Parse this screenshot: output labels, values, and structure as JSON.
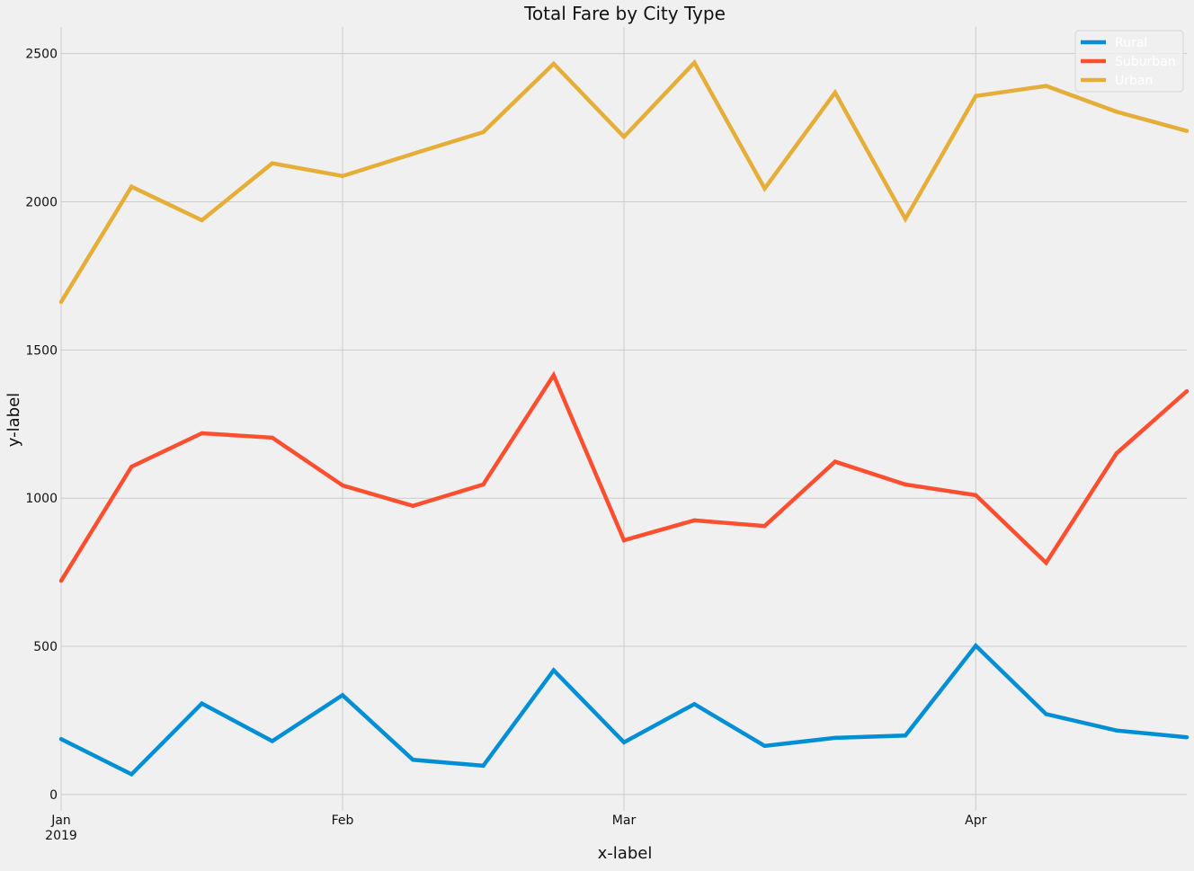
{
  "chart_data": {
    "type": "line",
    "title": "Total Fare by City Type",
    "xlabel": "x-label",
    "ylabel": "y-label",
    "x": [
      "2019-01-06",
      "2019-01-13",
      "2019-01-20",
      "2019-01-27",
      "2019-02-03",
      "2019-02-10",
      "2019-02-17",
      "2019-02-24",
      "2019-03-03",
      "2019-03-10",
      "2019-03-17",
      "2019-03-24",
      "2019-03-31",
      "2019-04-07",
      "2019-04-14",
      "2019-04-21",
      "2019-04-28"
    ],
    "xlim": [
      "2019-01-06",
      "2019-04-28"
    ],
    "x_ticks": [
      {
        "date": "2019-01-06",
        "label": "Jan",
        "sublabel": "2019"
      },
      {
        "date": "2019-02-03",
        "label": "Feb"
      },
      {
        "date": "2019-03-03",
        "label": "Mar"
      },
      {
        "date": "2019-04-07",
        "label": "Apr"
      }
    ],
    "ylim": [
      -55,
      2590
    ],
    "y_ticks": [
      0,
      500,
      1000,
      1500,
      2000,
      2500
    ],
    "grid": true,
    "legend_position": "top-right",
    "series": [
      {
        "name": "Rural",
        "color": "#008fd5",
        "values": [
          187,
          68,
          307,
          180,
          335,
          117,
          97,
          419,
          176,
          305,
          164,
          191,
          199,
          502,
          271,
          216,
          193
        ]
      },
      {
        "name": "Suburban",
        "color": "#fc4f30",
        "values": [
          721,
          1106,
          1219,
          1204,
          1043,
          974,
          1046,
          1415,
          858,
          925,
          906,
          1123,
          1046,
          1010,
          782,
          1151,
          1361
        ]
      },
      {
        "name": "Urban",
        "color": "#e5ae38",
        "values": [
          1662,
          2051,
          1938,
          2130,
          2087,
          2162,
          2235,
          2466,
          2219,
          2470,
          2045,
          2369,
          1942,
          2357,
          2391,
          2304,
          2239
        ]
      }
    ]
  }
}
